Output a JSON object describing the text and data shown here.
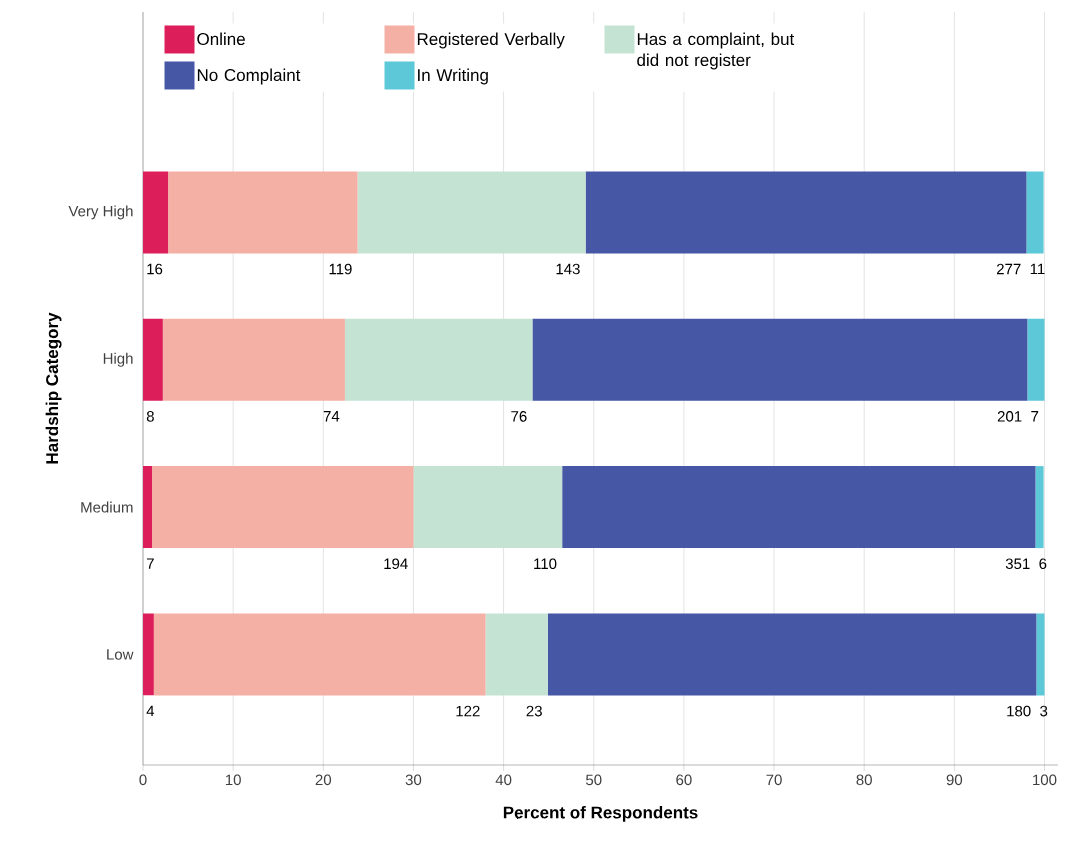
{
  "chart_data": {
    "type": "bar",
    "orientation": "horizontal",
    "stacked": true,
    "xlabel": "Percent of Respondents",
    "ylabel": "Hardship Category",
    "categories": [
      "Very High",
      "High",
      "Medium",
      "Low"
    ],
    "series": [
      {
        "name": "Online",
        "color": "#dc1f5b",
        "values": [
          2.8,
          2.2,
          1.0,
          1.2
        ]
      },
      {
        "name": "Registered Verbally",
        "color": "#f5b0a5",
        "values": [
          21.0,
          20.2,
          29.0,
          36.8
        ]
      },
      {
        "name": "Has a complaint, but did not register",
        "color": "#c5e3d3",
        "values": [
          25.3,
          20.8,
          16.5,
          6.9
        ]
      },
      {
        "name": "No Complaint",
        "color": "#4657a6",
        "values": [
          48.9,
          54.9,
          52.5,
          54.2
        ]
      },
      {
        "name": "In Writing",
        "color": "#5cc8d8",
        "values": [
          1.9,
          1.9,
          0.9,
          0.9
        ]
      }
    ],
    "annotations": [
      "16",
      "119",
      "143",
      "277",
      "11",
      "8",
      "74",
      "76",
      "201",
      "7",
      "7",
      "194",
      "110",
      "351",
      "6",
      "4",
      "122",
      "23",
      "180",
      "3"
    ],
    "xlim": [
      0,
      101.5
    ],
    "xticks": [
      0,
      10,
      20,
      30,
      40,
      50,
      60,
      70,
      80,
      90,
      100
    ],
    "grid": "x",
    "legend": "top left"
  }
}
